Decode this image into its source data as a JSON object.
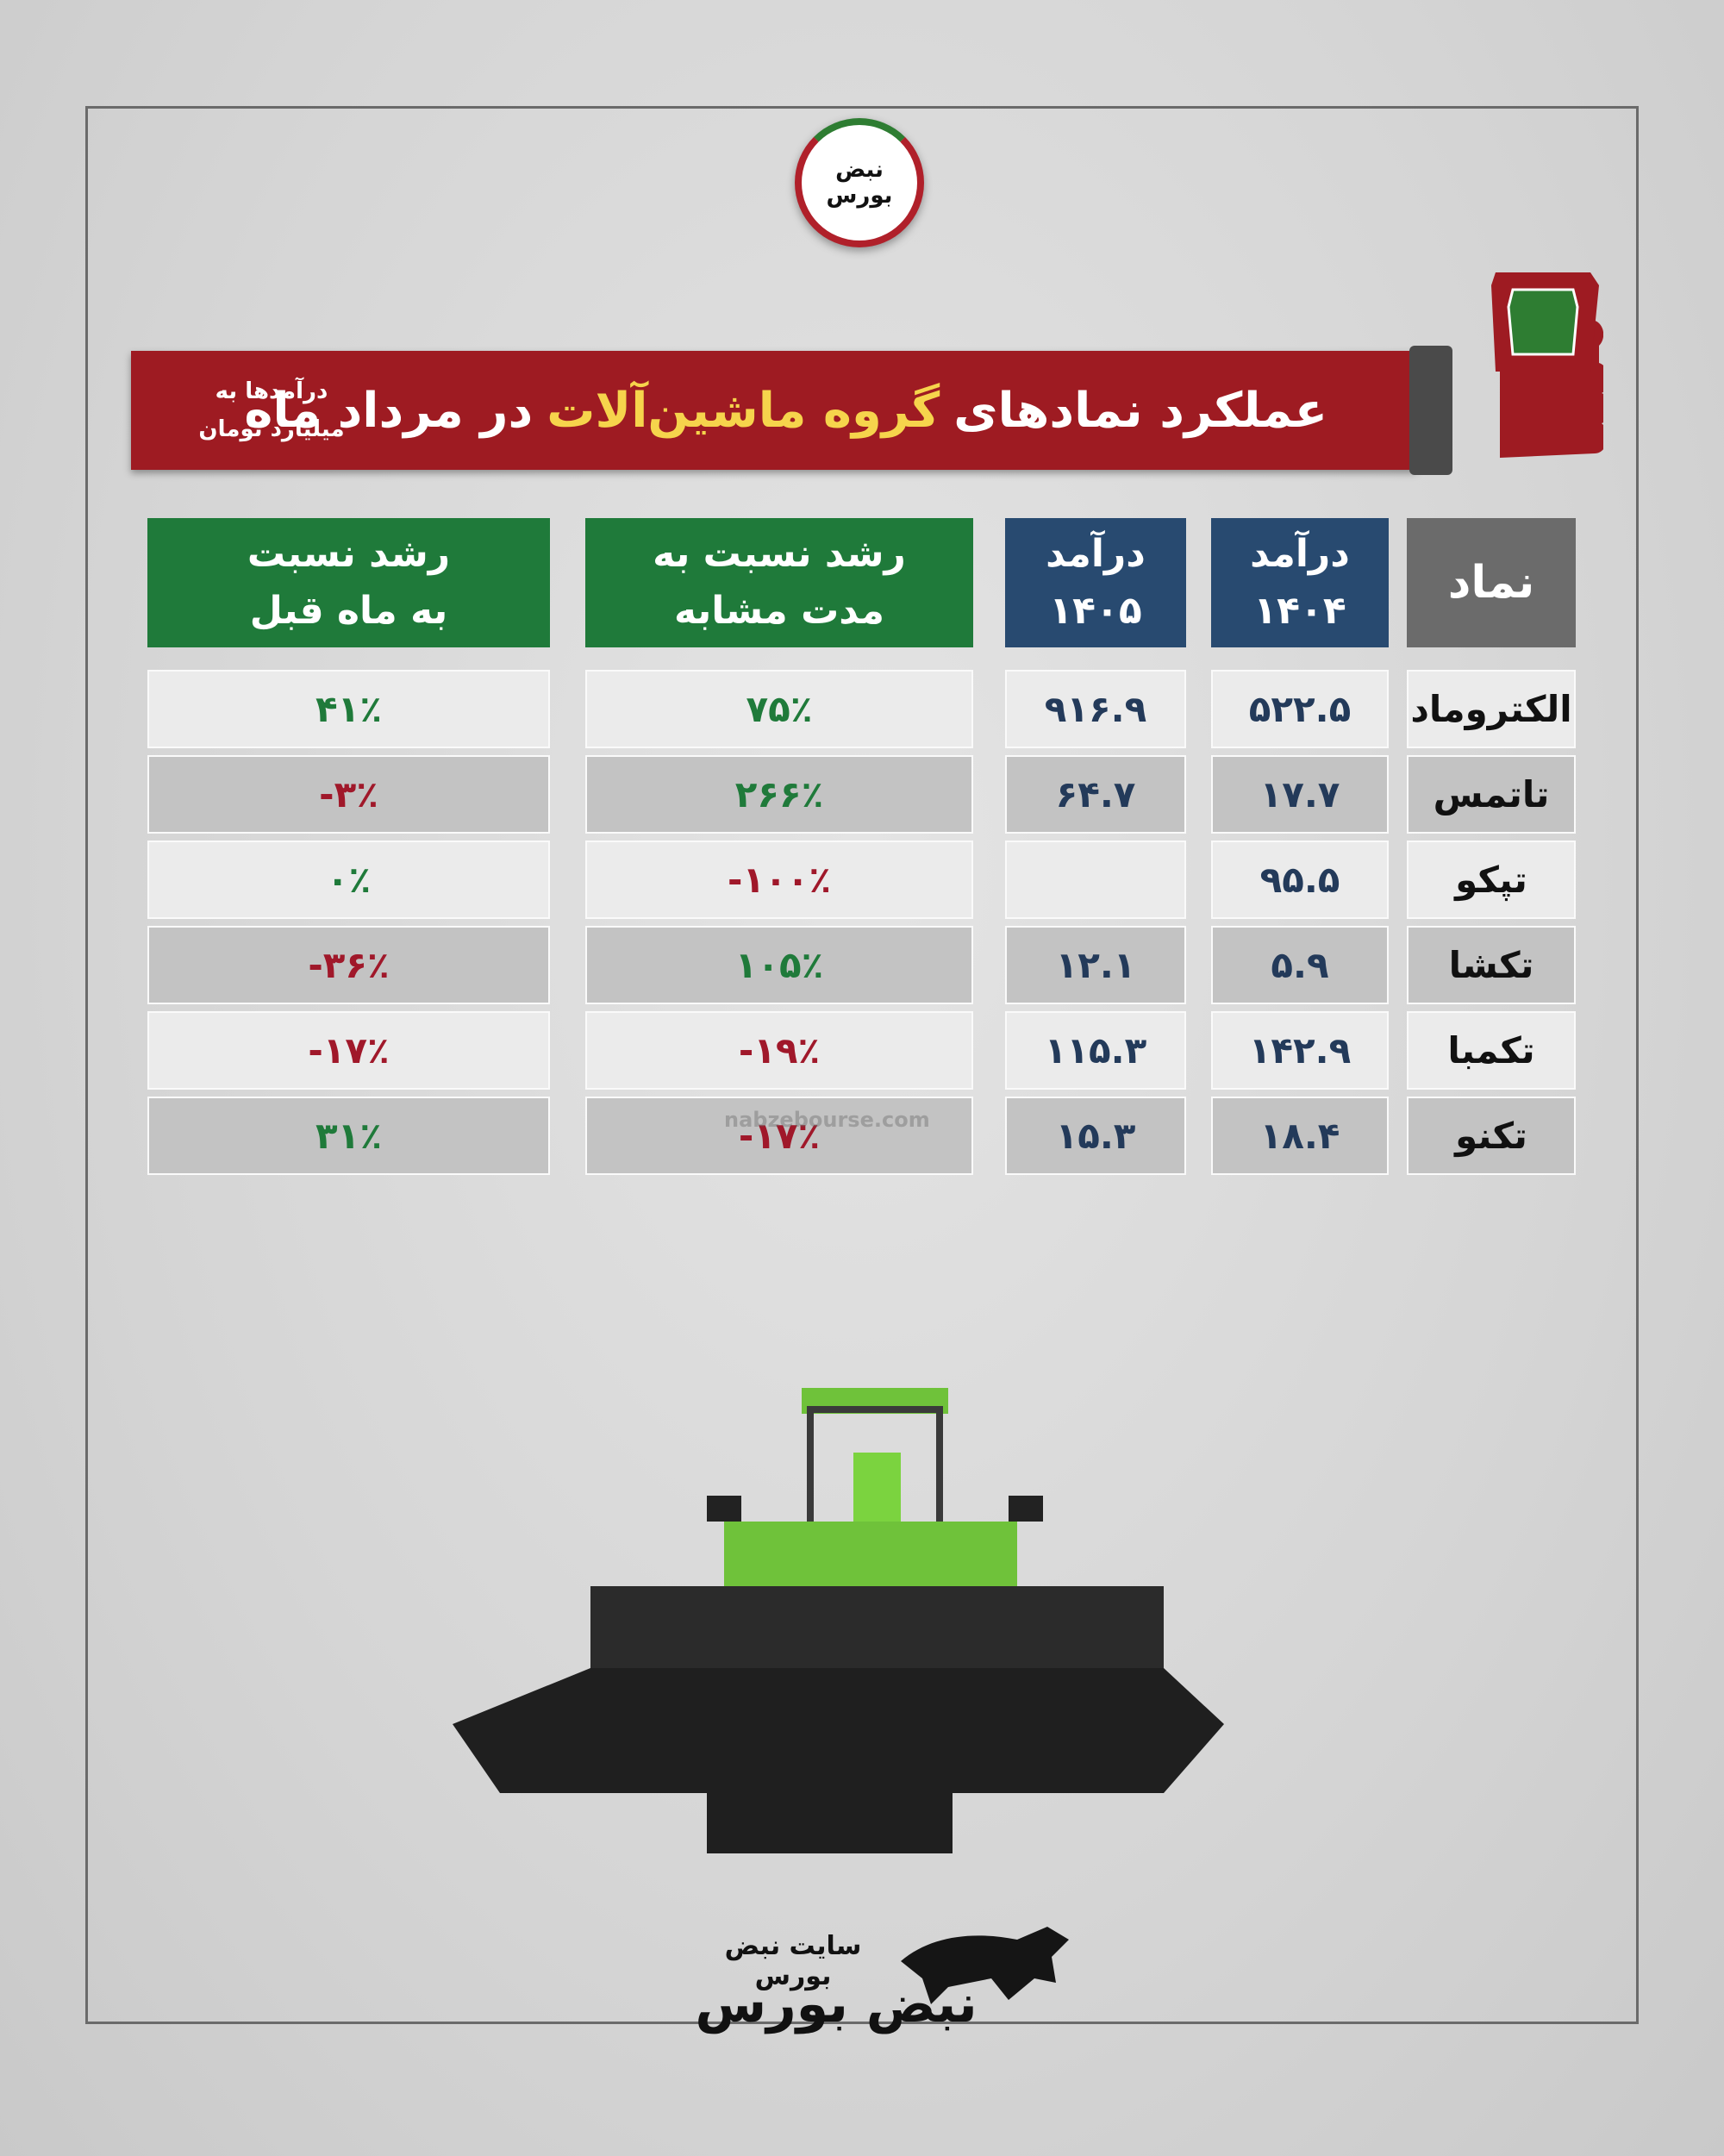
{
  "logo": {
    "text": "نبض بورس"
  },
  "header": {
    "title_start": "عملکرد نمادهای",
    "title_highlight": "گروه ماشین‌آلات",
    "title_end": "در مرداد ماه",
    "note": [
      "درآمدها به",
      "میلیارد تومان"
    ]
  },
  "table": {
    "columns": [
      [
        "نماد"
      ],
      [
        "درآمد",
        "۱۴۰۴"
      ],
      [
        "درآمد",
        "۱۴۰۵"
      ],
      [
        "رشد نسبت به",
        "مدت مشابه"
      ],
      [
        "رشد نسبت",
        "به ماه قبل"
      ]
    ],
    "rows": [
      [
        "الکتروماد",
        "۵۲۲.۵",
        "۹۱۶.۹",
        "۷۵٪",
        "۴۱٪"
      ],
      [
        "تاتمس",
        "۱۷.۷",
        "۶۴.۷",
        "۲۶۶٪",
        "-۳٪"
      ],
      [
        "تپکو",
        "۹۵.۵",
        null,
        "-۱۰۰٪",
        "۰٪"
      ],
      [
        "تکشا",
        "۵.۹",
        "۱۲.۱",
        "۱۰۵٪",
        "-۳۶٪"
      ],
      [
        "تکمبا",
        "۱۴۲.۹",
        "۱۱۵.۳",
        "-۱۹٪",
        "-۱۷٪"
      ],
      [
        "تکنو",
        "۱۸.۴",
        "۱۵.۳",
        "-۱۷٪",
        "۳۱٪"
      ]
    ]
  },
  "watermark": "nabzebourse.com",
  "footer": {
    "site": "سایت نبض بورس",
    "brand": "نبض بورس"
  }
}
